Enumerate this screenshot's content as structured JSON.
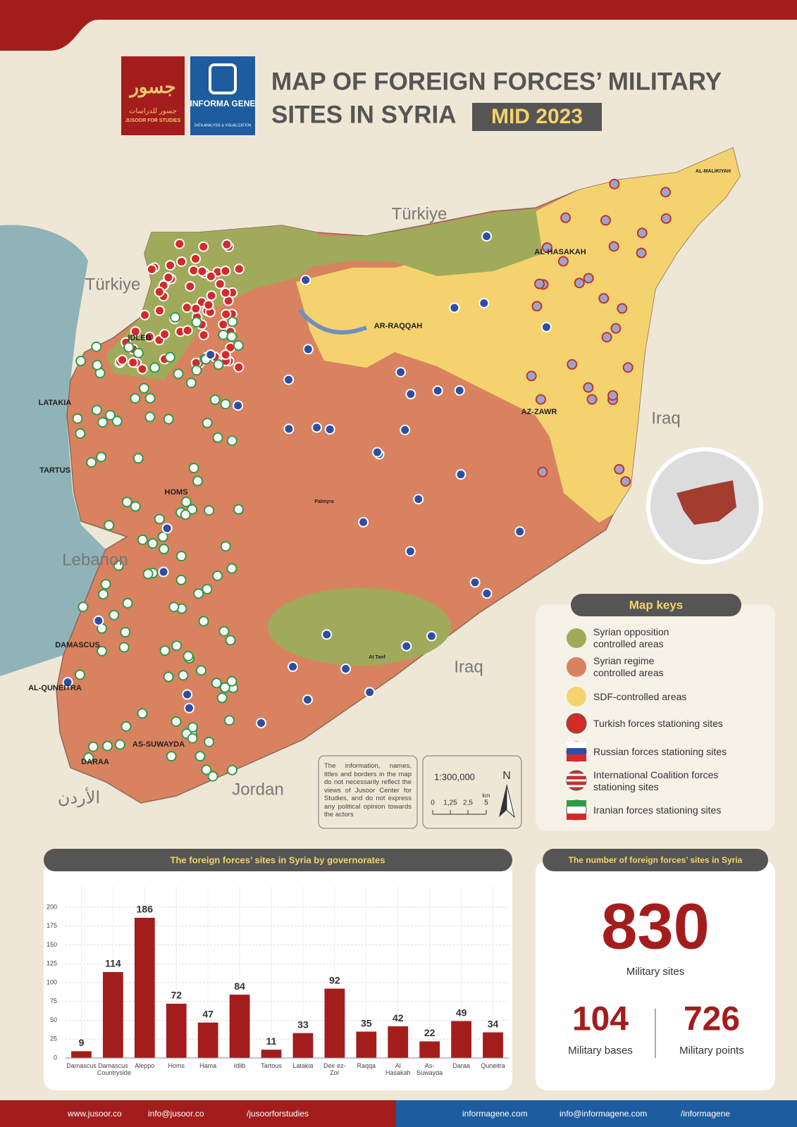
{
  "header": {
    "logo_left_arabic": "جسور للدراسات",
    "logo_left": "JUSOOR FOR STUDIES",
    "logo_right": "INFORMA GENE",
    "logo_right_sub": "DATA ANALYSIS & VISUALIZATION",
    "title_line1": "MAP OF FOREIGN FORCES’ MILITARY",
    "title_line2": "SITES IN SYRIA",
    "badge": "MID 2023"
  },
  "map": {
    "countries": [
      "Türkiye",
      "Türkiye",
      "Iraq",
      "Iraq",
      "Lebanon",
      "Jordan",
      "الأردن"
    ],
    "cities": [
      "IDLEB",
      "LATAKIA",
      "TARTUS",
      "HOMS",
      "AR-RAQQAH",
      "AL-HASAKAH",
      "AZ-ZAWR",
      "DAMASCUS",
      "AL-QUNEITRA",
      "AS-SUWAYDA",
      "DARAA",
      "AL-MALIKIYAH",
      "Palmyra",
      "At Tanf"
    ],
    "disclaimer": "The information, names, titles and borders in the map do not necessarily reflect the views of Jusoor Center for Studies, and do not express any political opinion towards the actors",
    "scale": "1:300,000",
    "scale_ticks": [
      "0",
      "1,25",
      "2,5",
      "5"
    ],
    "scale_unit": "km",
    "north": "N"
  },
  "map_keys": {
    "title": "Map keys",
    "items": [
      "Syrian opposition controlled areas",
      "Syrian regime controlled areas",
      "SDF-controlled areas",
      "Turkish forces stationing sites",
      "Russian forces stationing sites",
      "International Coalition forces stationing sites",
      "Iranian forces stationing sites"
    ]
  },
  "chart_data": {
    "type": "bar",
    "title": "The foreign forces’ sites in Syria by governorates",
    "categories": [
      "Damascus",
      "Damascus Countryside",
      "Aleppo",
      "Homs",
      "Hama",
      "Idlib",
      "Tartous",
      "Latakia",
      "Deir ez-Zor",
      "Raqqa",
      "Al Hasakah",
      "As-Suwayda",
      "Daraa",
      "Quneitra"
    ],
    "values": [
      9,
      114,
      186,
      72,
      47,
      84,
      11,
      33,
      92,
      35,
      42,
      22,
      49,
      34
    ],
    "color": "#a31d1d",
    "ylim": [
      0,
      200
    ],
    "yticks": [
      0,
      25,
      50,
      75,
      100,
      125,
      150,
      175,
      200
    ],
    "grid": true
  },
  "summary": {
    "title": "The number of foreign forces’ sites in Syria",
    "total": 830,
    "total_label": "Military sites",
    "bases": 104,
    "bases_label": "Military bases",
    "points": 726,
    "points_label": "Military points"
  },
  "footer": {
    "left": [
      "www.jusoor.co",
      "info@jusoor.co",
      "/jusoorforstudies"
    ],
    "right": [
      "informagene.com",
      "info@informagene.com",
      "/informagene"
    ]
  }
}
